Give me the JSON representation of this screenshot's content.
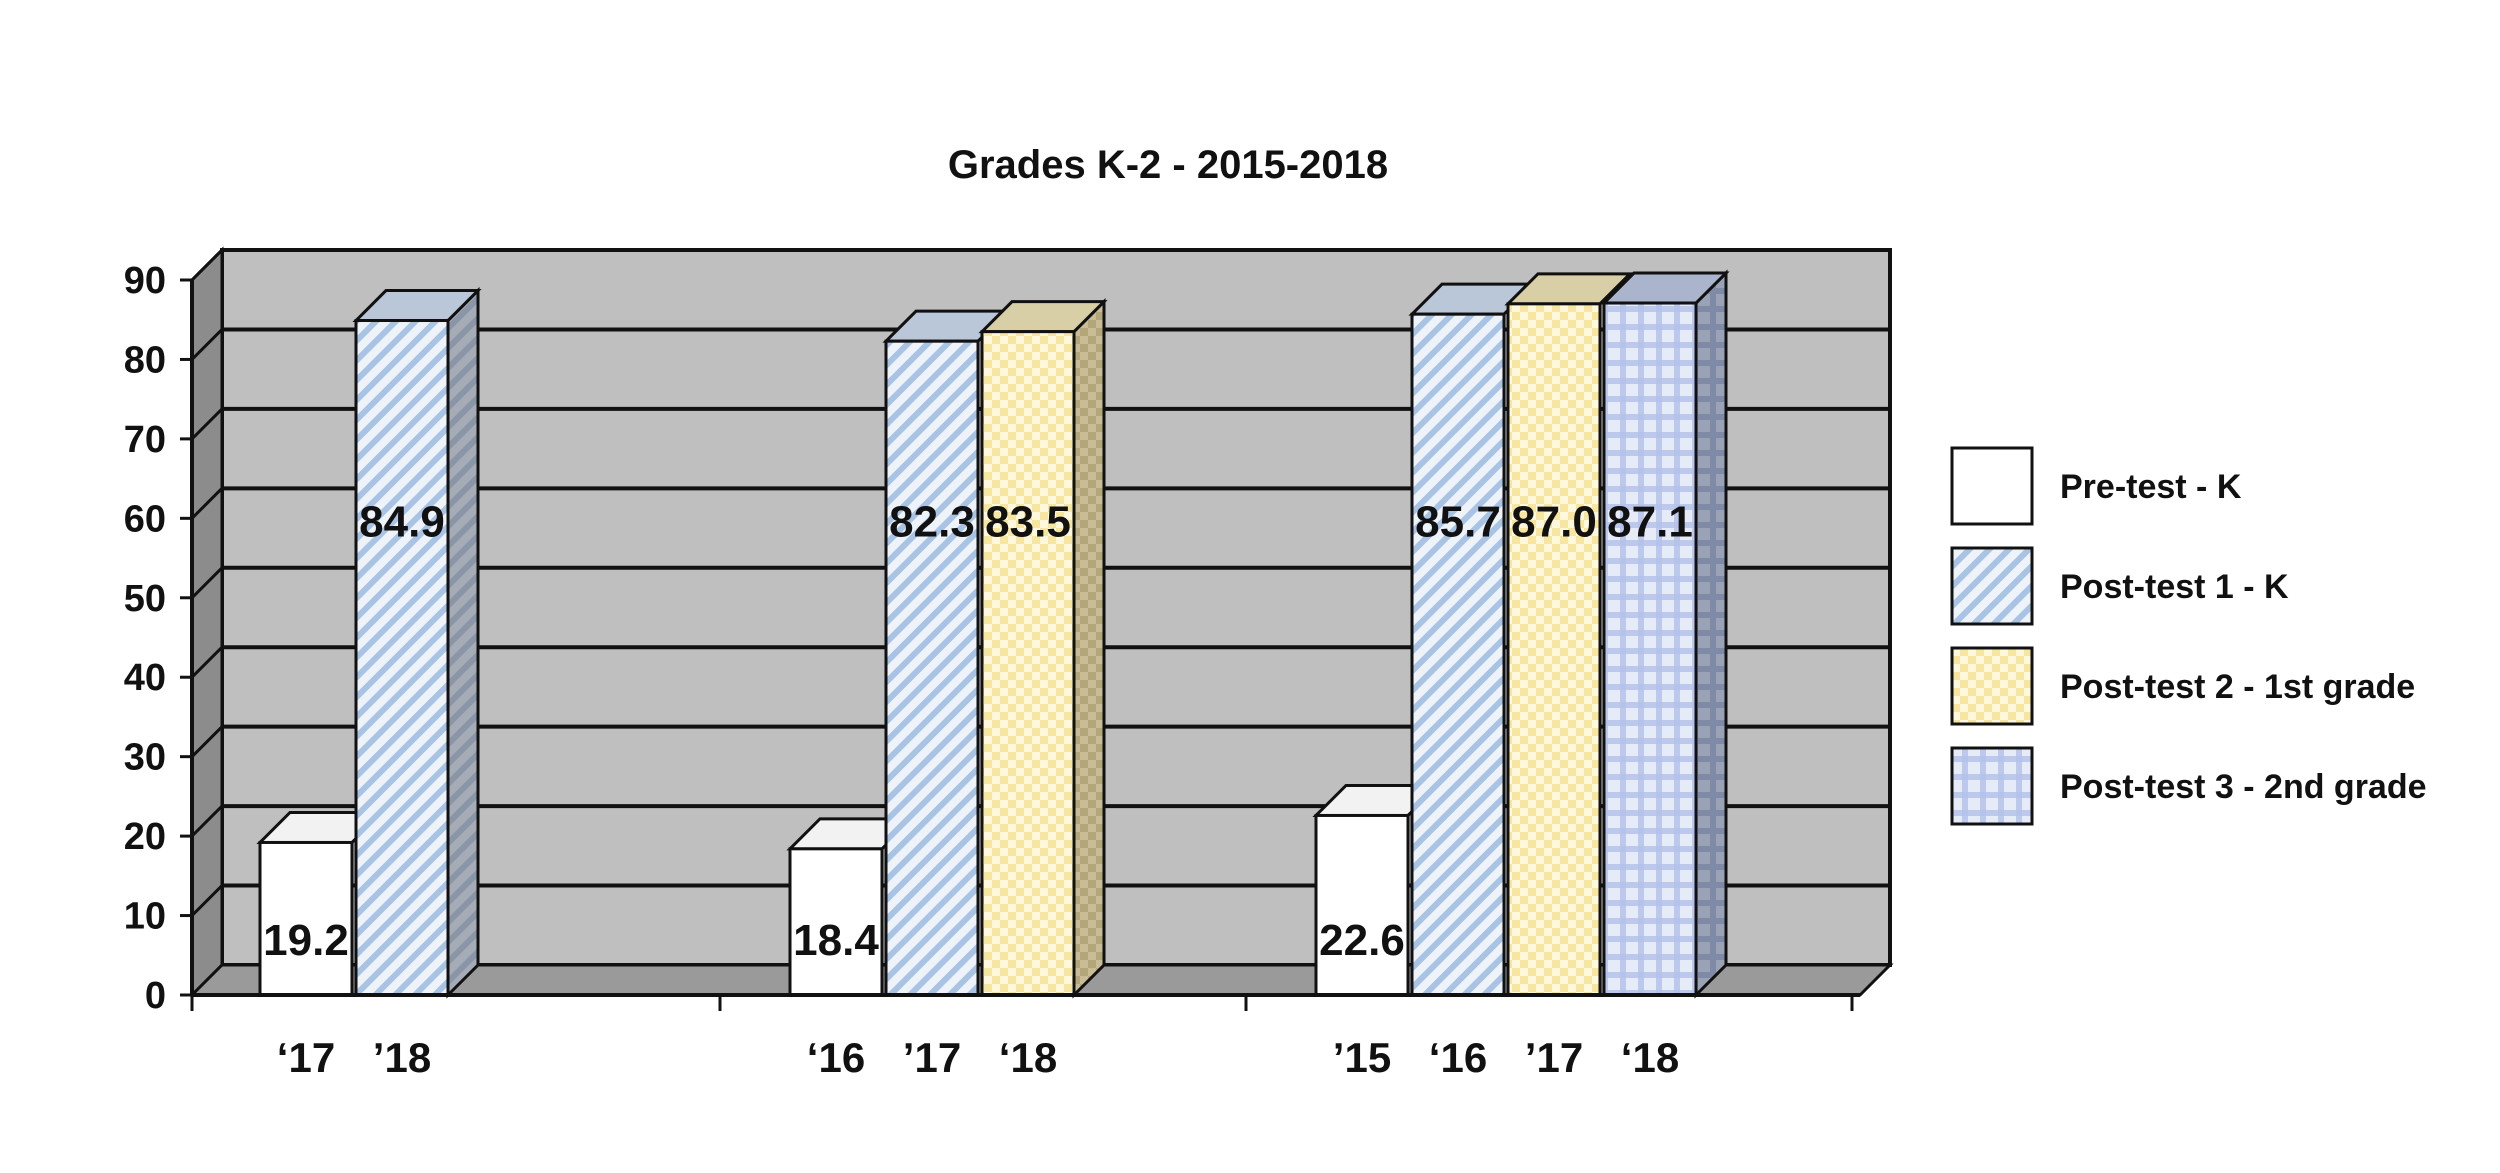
{
  "chart_data": {
    "type": "bar",
    "title": "Grades K-2 - 2015-2018",
    "ylim": [
      0,
      90
    ],
    "yticks": [
      0,
      10,
      20,
      30,
      40,
      50,
      60,
      70,
      80,
      90
    ],
    "grid": true,
    "legend_position": "right",
    "series": [
      {
        "name": "Pre-test - K",
        "color": "#ffffff",
        "pattern": "solid"
      },
      {
        "name": "Post-test 1 - K",
        "color": "#c9d9ef",
        "pattern": "diagonal-stripes"
      },
      {
        "name": "Post-test 2 - 1st grade",
        "color": "#fff2c0",
        "pattern": "checker"
      },
      {
        "name": "Post-test 3 - 2nd grade",
        "color": "#c6d0ee",
        "pattern": "checker"
      }
    ],
    "groups": [
      {
        "bars": [
          {
            "series": 0,
            "label": "‘17",
            "value": 19.2,
            "value_text": "19.2"
          },
          {
            "series": 1,
            "label": "’18",
            "value": 84.9,
            "value_text": "84.9"
          }
        ]
      },
      {
        "bars": [
          {
            "series": 0,
            "label": "‘16",
            "value": 18.4,
            "value_text": "18.4"
          },
          {
            "series": 1,
            "label": "’17",
            "value": 82.3,
            "value_text": "82.3"
          },
          {
            "series": 2,
            "label": "‘18",
            "value": 83.5,
            "value_text": "83.5"
          }
        ]
      },
      {
        "bars": [
          {
            "series": 0,
            "label": "’15",
            "value": 22.6,
            "value_text": "22.6"
          },
          {
            "series": 1,
            "label": "‘16",
            "value": 85.7,
            "value_text": "85.7"
          },
          {
            "series": 2,
            "label": "’17",
            "value": 87.0,
            "value_text": "87.0"
          },
          {
            "series": 3,
            "label": "‘18",
            "value": 87.1,
            "value_text": "87.1"
          }
        ]
      }
    ]
  }
}
